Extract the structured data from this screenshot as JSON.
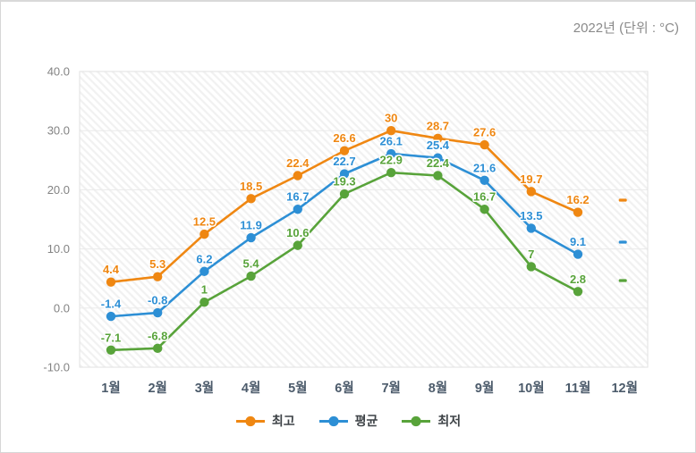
{
  "chart_data": {
    "type": "line",
    "title": "2022년 (단위 : °C)",
    "categories": [
      "1월",
      "2월",
      "3월",
      "4월",
      "5월",
      "6월",
      "7월",
      "8월",
      "9월",
      "10월",
      "11월",
      "12월"
    ],
    "series": [
      {
        "name": "최고",
        "color": "#EF8712",
        "values": [
          4.4,
          5.3,
          12.5,
          18.5,
          22.4,
          26.6,
          30,
          28.7,
          27.6,
          19.7,
          16.2,
          null
        ]
      },
      {
        "name": "평균",
        "color": "#2D8FD5",
        "values": [
          -1.4,
          -0.8,
          6.2,
          11.9,
          16.7,
          22.7,
          26.1,
          25.4,
          21.6,
          13.5,
          9.1,
          null
        ]
      },
      {
        "name": "최저",
        "color": "#58A33A",
        "values": [
          -7.1,
          -6.8,
          1,
          5.4,
          10.6,
          19.3,
          22.9,
          22.4,
          16.7,
          7,
          2.8,
          null
        ]
      }
    ],
    "missing_value_label": "-",
    "y_ticks": [
      40,
      30,
      20,
      10,
      0,
      -10
    ],
    "y_tick_labels": [
      "40.0",
      "30.0",
      "20.0",
      "10.0",
      "0.0",
      "-10.0"
    ],
    "ylim": [
      -10,
      40
    ],
    "grid": true,
    "legend_position": "bottom",
    "legend": [
      "최고",
      "평균",
      "최저"
    ]
  }
}
